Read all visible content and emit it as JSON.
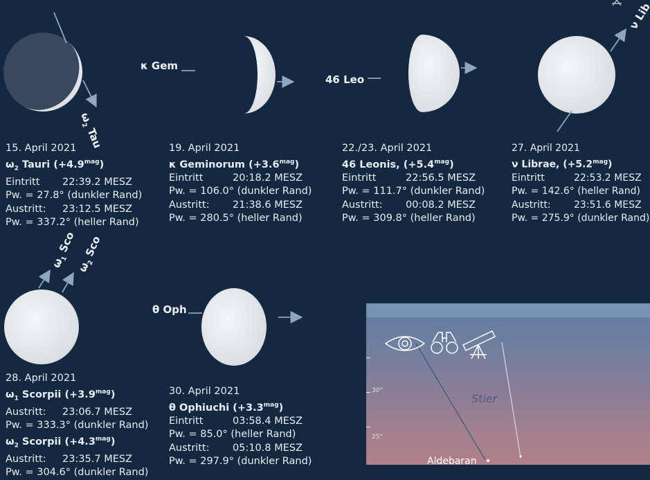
{
  "events": [
    {
      "date": "15. April 2021",
      "star_sym": "ω",
      "star_sub": "2",
      "star_name": " Tauri (+4.9",
      "star_mag": "mag",
      "star_close": ")",
      "l1_label": "Eintritt",
      "l1_time": "22:39.2 MESZ",
      "l2": "Pw. = 27.8° (dunkler Rand)",
      "l3_label": "Austritt:",
      "l3_time": "23:12.5 MESZ",
      "l4": "Pw. = 337.2° (heller Rand)",
      "label_sym": "ω",
      "label_sub": "2",
      "label_name": " Tau"
    },
    {
      "date": "19. April 2021",
      "star_sym": "κ",
      "star_name": " Geminorum (+3.6",
      "star_mag": "mag",
      "star_close": ")",
      "l1_label": "Eintritt",
      "l1_time": "20:18.2 MESZ",
      "l2": "Pw. = 106.0° (dunkler Rand)",
      "l3_label": "Austritt:",
      "l3_time": "21:38.6 MESZ",
      "l4": "Pw. = 280.5° (heller Rand)",
      "label": "κ Gem"
    },
    {
      "date": "22./23. April 2021",
      "star_name": "46 Leonis, (+5.4",
      "star_mag": "mag",
      "star_close": ")",
      "l1_label": "Eintritt",
      "l1_time": "22:56.5 MESZ",
      "l2": "Pw. = 111.7° (dunkler Rand)",
      "l3_label": "Austritt:",
      "l3_time": "00:08.2 MESZ",
      "l4": "Pw. = 309.8° (heller Rand)",
      "label": "46 Leo"
    },
    {
      "date": "27. April 2021",
      "star_sym": "ν",
      "star_name": " Librae, (+5.2",
      "star_mag": "mag",
      "star_close": ")",
      "l1_label": "Eintritt",
      "l1_time": "22:53.2 MESZ",
      "l2": "Pw. = 142.6° (heller Rand)",
      "l3_label": "Austritt:",
      "l3_time": "23:51.6 MESZ",
      "l4": "Pw. = 275.9° (dunkler Rand)",
      "label": "ν Lib"
    },
    {
      "date": "28. April 2021",
      "a_sym": "ω",
      "a_sub": "1",
      "a_name": " Scorpii (+3.9",
      "a_mag": "mag",
      "a_close": ")",
      "a_l1_label": "Austritt:",
      "a_l1_time": "23:06.7 MESZ",
      "a_l2": "Pw. = 333.3° (dunkler Rand)",
      "b_sym": "ω",
      "b_sub": "2",
      "b_name": " Scorpii (+4.3",
      "b_mag": "mag",
      "b_close": ")",
      "b_l1_label": "Austritt:",
      "b_l1_time": "23:35.7 MESZ",
      "b_l2": "Pw. = 304.6° (dunkler Rand)",
      "label1_sym": "ω",
      "label1_sub": "1",
      "label1_name": " Sco",
      "label2_sym": "ω",
      "label2_sub": "2",
      "label2_name": " Sco"
    },
    {
      "date": "30. April 2021",
      "star_sym": "θ",
      "star_name": " Ophiuchi (+3.3",
      "star_mag": "mag",
      "star_close": ")",
      "l1_label": "Eintritt",
      "l1_time": "03:58.4 MESZ",
      "l2": "Pw. = 85.0° (heller Rand)",
      "l3_label": "Austritt:",
      "l3_time": "05:10.8 MESZ",
      "l4": "Pw. = 297.9° (dunkler Rand)",
      "label": "θ Oph"
    }
  ],
  "sky_panel": {
    "tick_30": "30°",
    "tick_25": "25°",
    "constellation": "Stier",
    "star": "Aldebaran",
    "icons": [
      "eye-icon",
      "binoculars-icon",
      "telescope-icon"
    ]
  },
  "colors": {
    "background": "#14283f",
    "moon": "#e9ecef",
    "arrow": "#8fa6c0"
  }
}
